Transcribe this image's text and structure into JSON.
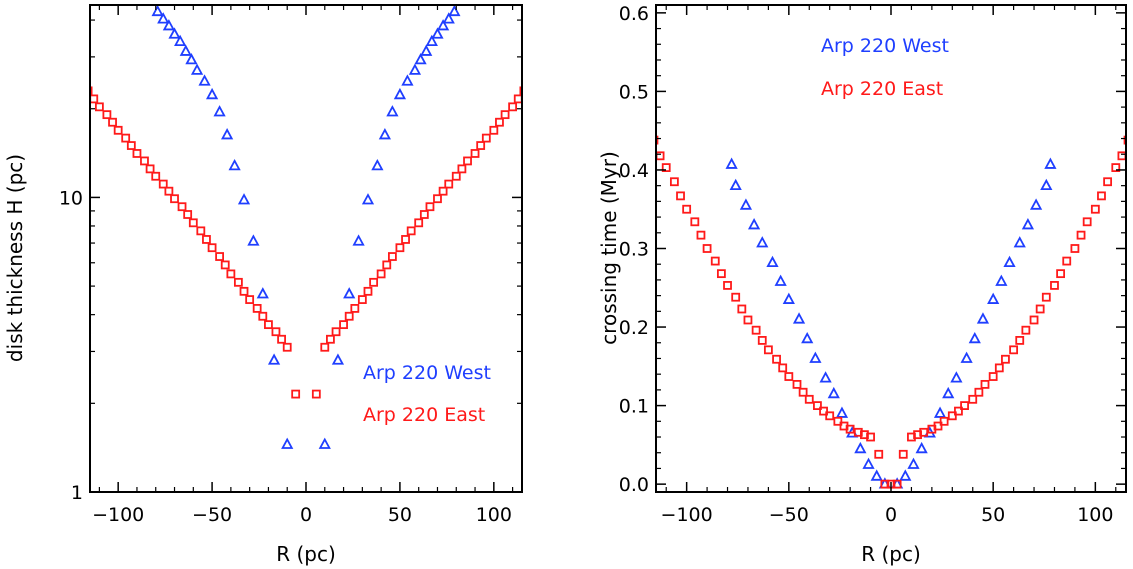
{
  "chart_data": [
    {
      "type": "scatter",
      "xlabel": "R (pc)",
      "ylabel": "disk thickness H (pc)",
      "yscale": "log",
      "xlim": [
        -115,
        115
      ],
      "ylim": [
        1,
        45
      ],
      "x_ticks": [
        -100,
        -50,
        0,
        50,
        100
      ],
      "x_tick_labels": [
        "−100",
        "−50",
        "0",
        "50",
        "100"
      ],
      "y_ticks": [
        1,
        10
      ],
      "y_tick_labels": [
        "1",
        "10"
      ],
      "grid": false,
      "legend_position": "bottom-right",
      "series": [
        {
          "name": "Arp 220 West",
          "color": "#1f3fff",
          "marker": "triangle",
          "points": [
            [
              -10,
              1.45
            ],
            [
              -17,
              2.8
            ],
            [
              -23,
              4.7
            ],
            [
              -28,
              7.1
            ],
            [
              -33,
              9.8
            ],
            [
              -38,
              12.8
            ],
            [
              -42,
              16.3
            ],
            [
              -46,
              19.5
            ],
            [
              -50,
              22.3
            ],
            [
              -54,
              24.8
            ],
            [
              -58,
              27.0
            ],
            [
              -61,
              29.3
            ],
            [
              -64,
              31.3
            ],
            [
              -67,
              33.8
            ],
            [
              -70,
              35.8
            ],
            [
              -73,
              38.2
            ],
            [
              -76,
              40.3
            ],
            [
              -79,
              42.7
            ],
            [
              10,
              1.45
            ],
            [
              17,
              2.8
            ],
            [
              23,
              4.7
            ],
            [
              28,
              7.1
            ],
            [
              33,
              9.8
            ],
            [
              38,
              12.8
            ],
            [
              42,
              16.3
            ],
            [
              46,
              19.5
            ],
            [
              50,
              22.3
            ],
            [
              54,
              24.8
            ],
            [
              58,
              27.0
            ],
            [
              61,
              29.3
            ],
            [
              64,
              31.3
            ],
            [
              67,
              33.8
            ],
            [
              70,
              35.8
            ],
            [
              73,
              38.2
            ],
            [
              76,
              40.3
            ],
            [
              79,
              42.7
            ]
          ]
        },
        {
          "name": "Arp 220 East",
          "color": "#ff1a1a",
          "marker": "square",
          "points": [
            [
              -5.5,
              2.15
            ],
            [
              5.5,
              2.15
            ],
            [
              -10,
              3.1
            ],
            [
              -13,
              3.3
            ],
            [
              -16,
              3.5
            ],
            [
              -20,
              3.7
            ],
            [
              -23,
              3.95
            ],
            [
              -26,
              4.2
            ],
            [
              -30,
              4.5
            ],
            [
              -33,
              4.8
            ],
            [
              -36,
              5.15
            ],
            [
              -40,
              5.5
            ],
            [
              -43,
              5.9
            ],
            [
              -46,
              6.3
            ],
            [
              -50,
              6.75
            ],
            [
              -53,
              7.2
            ],
            [
              -56,
              7.7
            ],
            [
              -60,
              8.2
            ],
            [
              -63,
              8.75
            ],
            [
              -66,
              9.3
            ],
            [
              -70,
              9.9
            ],
            [
              -73,
              10.5
            ],
            [
              -76,
              11.1
            ],
            [
              -80,
              11.8
            ],
            [
              -83,
              12.5
            ],
            [
              -86,
              13.3
            ],
            [
              -90,
              14.1
            ],
            [
              -93,
              15.0
            ],
            [
              -96,
              15.9
            ],
            [
              -100,
              16.9
            ],
            [
              -103,
              18.0
            ],
            [
              -106,
              19.1
            ],
            [
              -110,
              20.3
            ],
            [
              -113,
              21.6
            ],
            [
              -116,
              23.0
            ],
            [
              10,
              3.1
            ],
            [
              13,
              3.3
            ],
            [
              16,
              3.5
            ],
            [
              20,
              3.7
            ],
            [
              23,
              3.95
            ],
            [
              26,
              4.2
            ],
            [
              30,
              4.5
            ],
            [
              33,
              4.8
            ],
            [
              36,
              5.15
            ],
            [
              40,
              5.5
            ],
            [
              43,
              5.9
            ],
            [
              46,
              6.3
            ],
            [
              50,
              6.75
            ],
            [
              53,
              7.2
            ],
            [
              56,
              7.7
            ],
            [
              60,
              8.2
            ],
            [
              63,
              8.75
            ],
            [
              66,
              9.3
            ],
            [
              70,
              9.9
            ],
            [
              73,
              10.5
            ],
            [
              76,
              11.1
            ],
            [
              80,
              11.8
            ],
            [
              83,
              12.5
            ],
            [
              86,
              13.3
            ],
            [
              90,
              14.1
            ],
            [
              93,
              15.0
            ],
            [
              96,
              15.9
            ],
            [
              100,
              16.9
            ],
            [
              103,
              18.0
            ],
            [
              106,
              19.1
            ],
            [
              110,
              20.3
            ],
            [
              113,
              21.6
            ],
            [
              116,
              23.0
            ]
          ]
        }
      ]
    },
    {
      "type": "scatter",
      "xlabel": "R (pc)",
      "ylabel": "crossing time (Myr)",
      "yscale": "linear",
      "xlim": [
        -115,
        115
      ],
      "ylim": [
        -0.01,
        0.61
      ],
      "x_ticks": [
        -100,
        -50,
        0,
        50,
        100
      ],
      "x_tick_labels": [
        "−100",
        "−50",
        "0",
        "50",
        "100"
      ],
      "y_ticks": [
        0.0,
        0.1,
        0.2,
        0.3,
        0.4,
        0.5,
        0.6
      ],
      "y_tick_labels": [
        "0.0",
        "0.1",
        "0.2",
        "0.3",
        "0.4",
        "0.5",
        "0.6"
      ],
      "grid": false,
      "legend_position": "top-left",
      "series": [
        {
          "name": "Arp 220 West",
          "color": "#1f3fff",
          "marker": "triangle",
          "points": [
            [
              -3,
              0.0
            ],
            [
              -7,
              0.01
            ],
            [
              -11,
              0.025
            ],
            [
              -15,
              0.045
            ],
            [
              -19,
              0.065
            ],
            [
              -24,
              0.09
            ],
            [
              -28,
              0.115
            ],
            [
              -32,
              0.135
            ],
            [
              -37,
              0.16
            ],
            [
              -41,
              0.185
            ],
            [
              -45,
              0.21
            ],
            [
              -50,
              0.235
            ],
            [
              -54,
              0.258
            ],
            [
              -58,
              0.282
            ],
            [
              -63,
              0.307
            ],
            [
              -67,
              0.33
            ],
            [
              -71,
              0.355
            ],
            [
              -76,
              0.38
            ],
            [
              -78,
              0.407
            ],
            [
              3,
              0.0
            ],
            [
              7,
              0.01
            ],
            [
              11,
              0.025
            ],
            [
              15,
              0.045
            ],
            [
              19,
              0.065
            ],
            [
              24,
              0.09
            ],
            [
              28,
              0.115
            ],
            [
              32,
              0.135
            ],
            [
              37,
              0.16
            ],
            [
              41,
              0.185
            ],
            [
              45,
              0.21
            ],
            [
              50,
              0.235
            ],
            [
              54,
              0.258
            ],
            [
              58,
              0.282
            ],
            [
              63,
              0.307
            ],
            [
              67,
              0.33
            ],
            [
              71,
              0.355
            ],
            [
              76,
              0.38
            ],
            [
              78,
              0.407
            ]
          ]
        },
        {
          "name": "Arp 220 East",
          "color": "#ff1a1a",
          "marker": "square",
          "points": [
            [
              -3,
              0.0
            ],
            [
              0,
              0.0
            ],
            [
              3,
              0.0
            ],
            [
              -6,
              0.038
            ],
            [
              6,
              0.038
            ],
            [
              -10,
              0.06
            ],
            [
              -13,
              0.063
            ],
            [
              -16,
              0.066
            ],
            [
              -20,
              0.07
            ],
            [
              -23,
              0.074
            ],
            [
              -26,
              0.08
            ],
            [
              -30,
              0.087
            ],
            [
              -33,
              0.093
            ],
            [
              -36,
              0.1
            ],
            [
              -40,
              0.108
            ],
            [
              -43,
              0.117
            ],
            [
              -46,
              0.127
            ],
            [
              -50,
              0.137
            ],
            [
              -53,
              0.148
            ],
            [
              -56,
              0.159
            ],
            [
              -60,
              0.171
            ],
            [
              -63,
              0.183
            ],
            [
              -66,
              0.196
            ],
            [
              -70,
              0.209
            ],
            [
              -73,
              0.223
            ],
            [
              -76,
              0.238
            ],
            [
              -80,
              0.253
            ],
            [
              -83,
              0.268
            ],
            [
              -86,
              0.284
            ],
            [
              -90,
              0.3
            ],
            [
              -93,
              0.317
            ],
            [
              -96,
              0.334
            ],
            [
              -100,
              0.35
            ],
            [
              -103,
              0.367
            ],
            [
              -106,
              0.385
            ],
            [
              -110,
              0.403
            ],
            [
              -113,
              0.418
            ],
            [
              -116,
              0.438
            ],
            [
              10,
              0.06
            ],
            [
              13,
              0.063
            ],
            [
              16,
              0.066
            ],
            [
              20,
              0.07
            ],
            [
              23,
              0.074
            ],
            [
              26,
              0.08
            ],
            [
              30,
              0.087
            ],
            [
              33,
              0.093
            ],
            [
              36,
              0.1
            ],
            [
              40,
              0.108
            ],
            [
              43,
              0.117
            ],
            [
              46,
              0.127
            ],
            [
              50,
              0.137
            ],
            [
              53,
              0.148
            ],
            [
              56,
              0.159
            ],
            [
              60,
              0.171
            ],
            [
              63,
              0.183
            ],
            [
              66,
              0.196
            ],
            [
              70,
              0.209
            ],
            [
              73,
              0.223
            ],
            [
              76,
              0.238
            ],
            [
              80,
              0.253
            ],
            [
              83,
              0.268
            ],
            [
              86,
              0.284
            ],
            [
              90,
              0.3
            ],
            [
              93,
              0.317
            ],
            [
              96,
              0.334
            ],
            [
              100,
              0.35
            ],
            [
              103,
              0.367
            ],
            [
              106,
              0.385
            ],
            [
              110,
              0.403
            ],
            [
              113,
              0.418
            ],
            [
              116,
              0.438
            ]
          ]
        }
      ]
    }
  ]
}
